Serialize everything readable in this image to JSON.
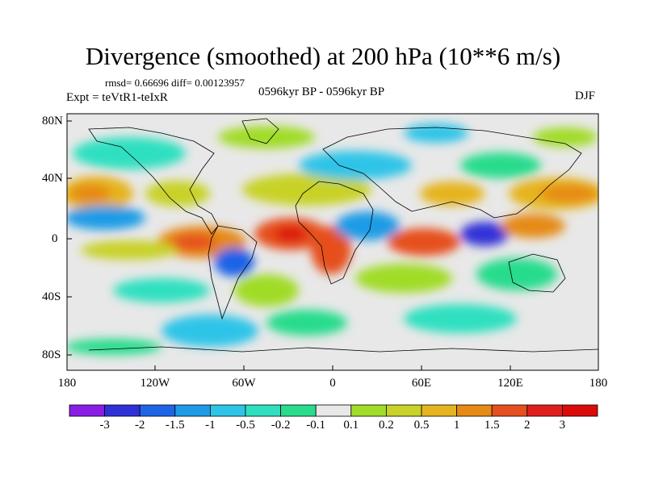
{
  "title": "Divergence (smoothed) at 200 hPa (10**6 m/s)",
  "stats": "rmsd= 0.66696 diff= 0.00123957",
  "period": "0596kyr BP - 0596kyr BP",
  "experiment": "Expt = teVtR1-teIxR",
  "season": "DJF",
  "lat_ticks": [
    "80N",
    "40N",
    "0",
    "40S",
    "80S"
  ],
  "lon_ticks": [
    "180",
    "120W",
    "60W",
    "0",
    "60E",
    "120E",
    "180"
  ],
  "colorbar": {
    "labels": [
      "-3",
      "-2",
      "-1.5",
      "-1",
      "-0.5",
      "-0.2",
      "-0.1",
      "0.1",
      "0.2",
      "0.5",
      "1",
      "1.5",
      "2",
      "3"
    ],
    "colors": [
      "#8a1ee6",
      "#3030d8",
      "#1e64e6",
      "#1e9be6",
      "#2ec4e8",
      "#2ee0c0",
      "#28dc8c",
      "#e8e8e8",
      "#a0dc28",
      "#c8d228",
      "#e6b41e",
      "#e68a14",
      "#e6501e",
      "#e01e1e",
      "#dc0a0a"
    ]
  },
  "map_features": {
    "ocean_color": "#e8e8e8",
    "coast_color": "#000000"
  }
}
